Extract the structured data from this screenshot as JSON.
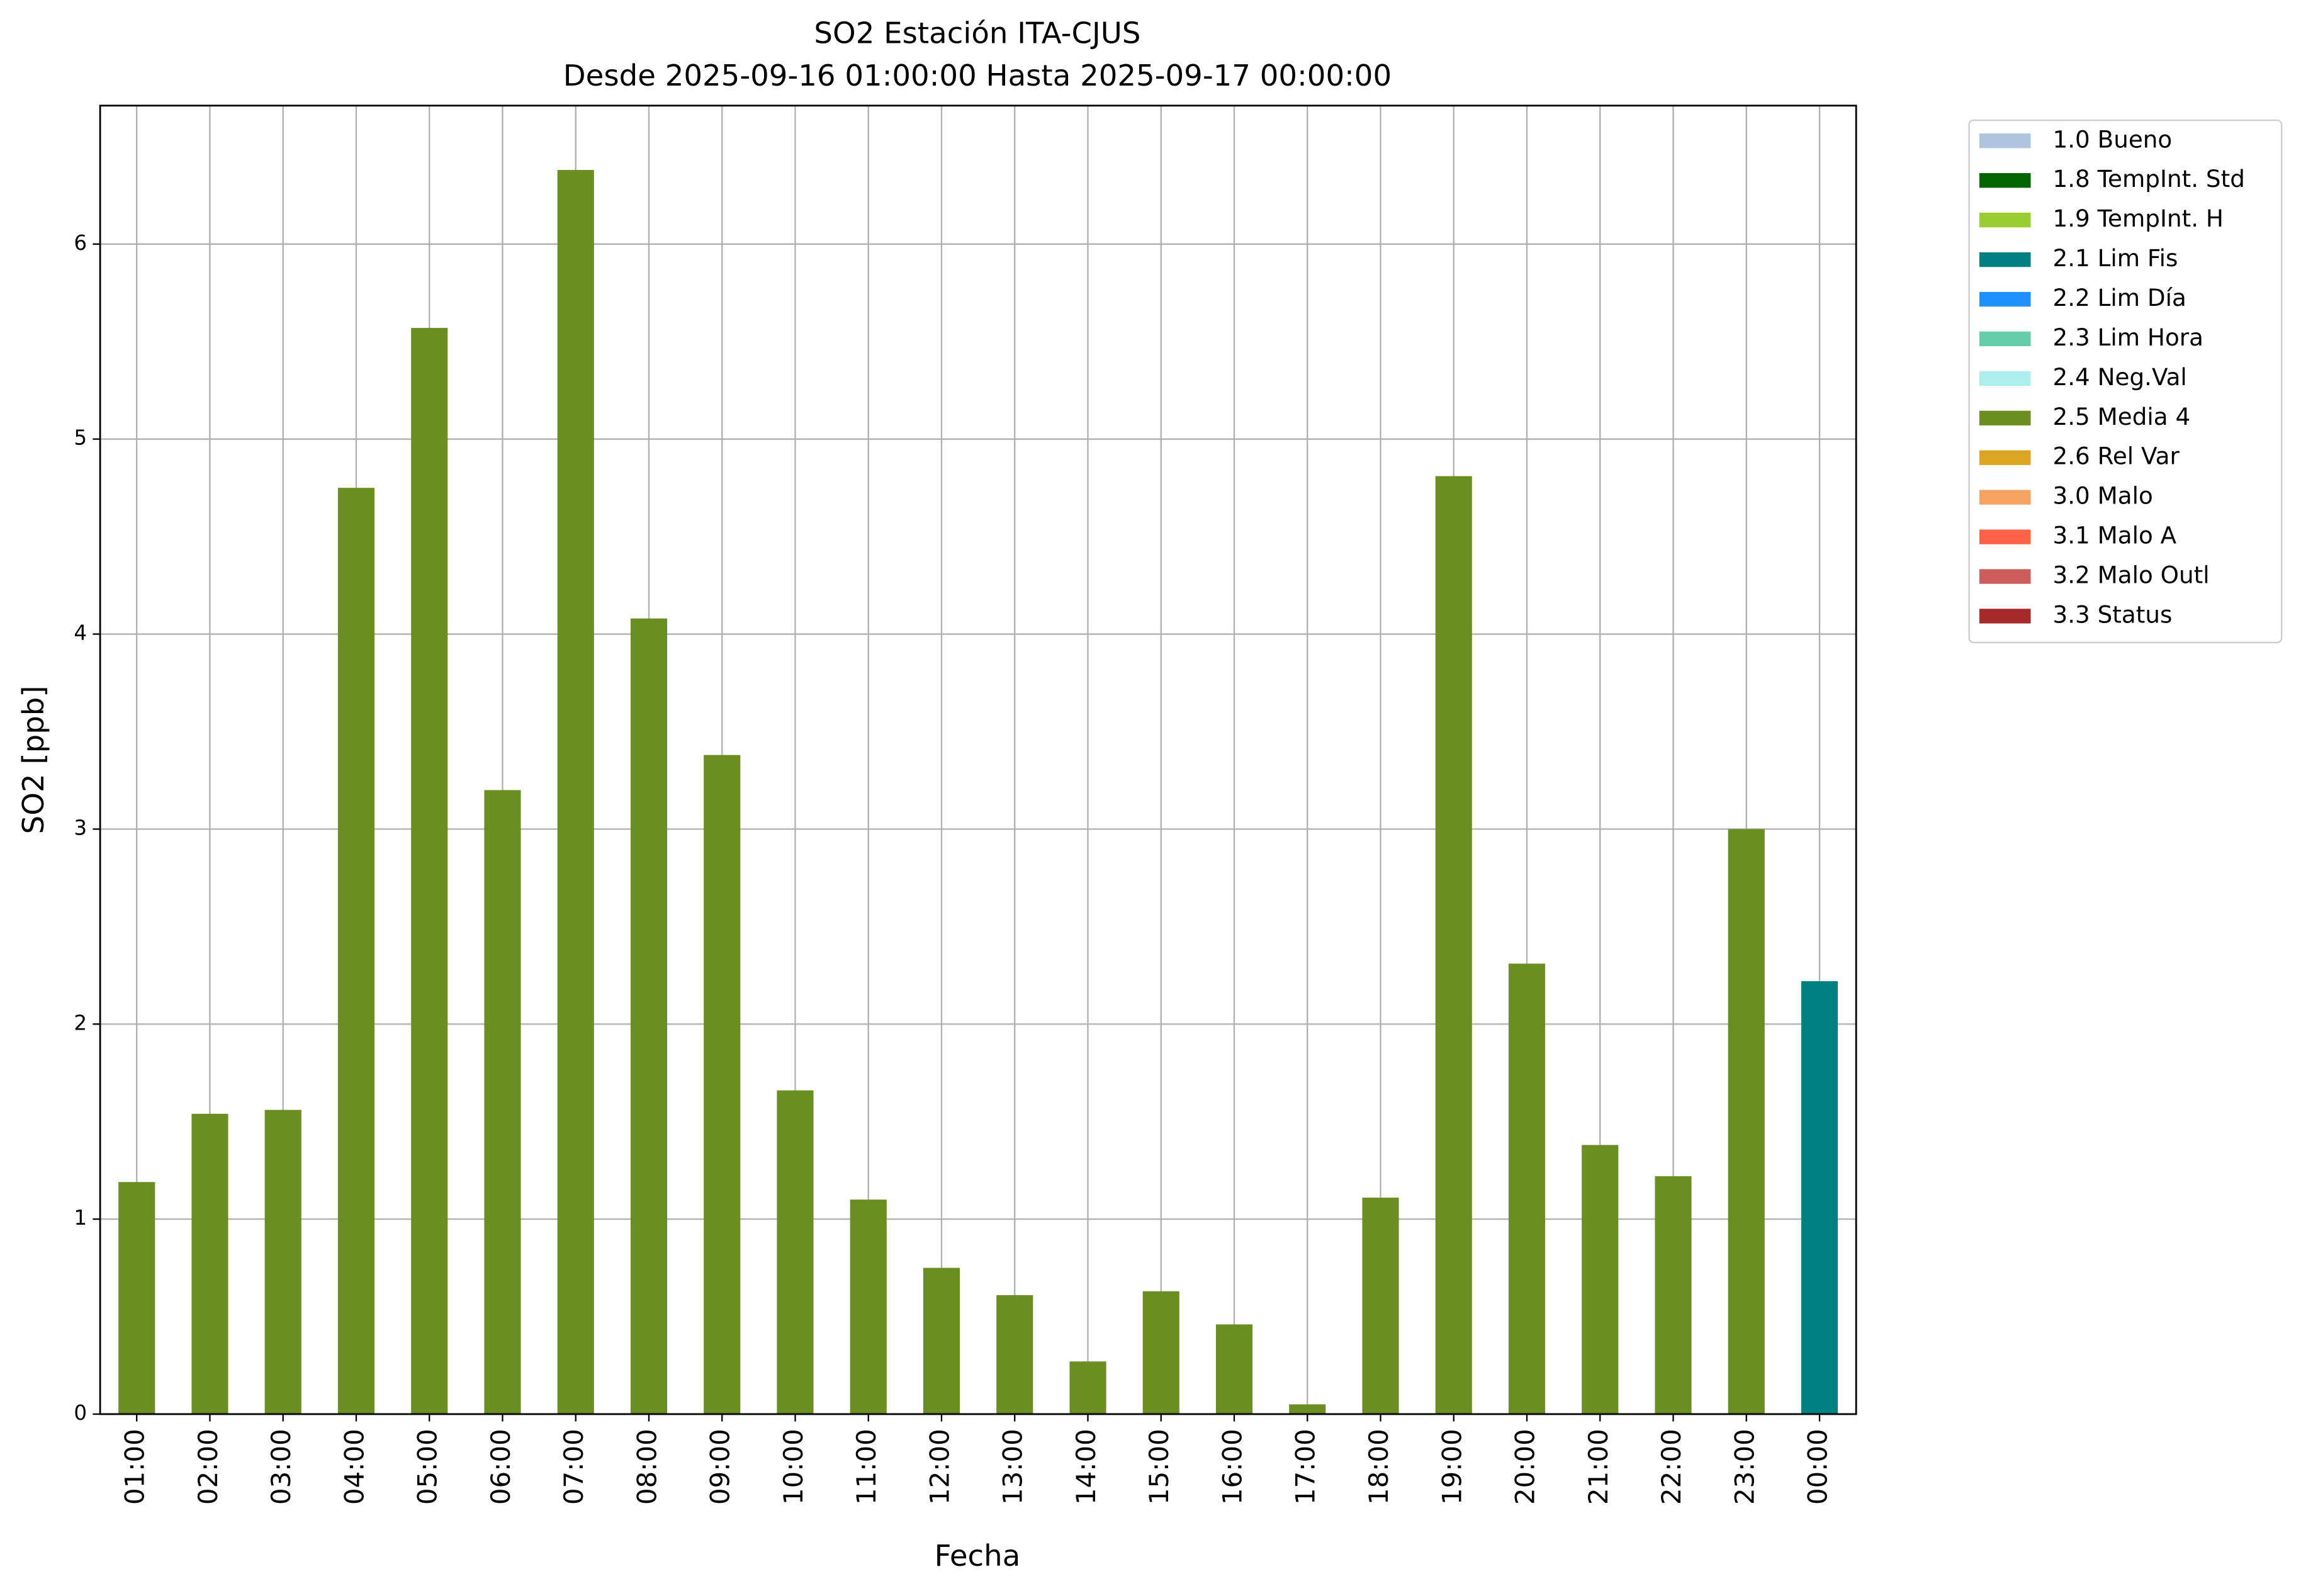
{
  "chart_data": {
    "type": "bar",
    "stacked": true,
    "title": "SO2 Estación ITA-CJUS",
    "subtitle": "Desde 2025-09-16 01:00:00 Hasta 2025-09-17 00:00:00",
    "xlabel": "Fecha",
    "ylabel": "SO2 [ppb]",
    "categories": [
      "01:00",
      "02:00",
      "03:00",
      "04:00",
      "05:00",
      "06:00",
      "07:00",
      "08:00",
      "09:00",
      "10:00",
      "11:00",
      "12:00",
      "13:00",
      "14:00",
      "15:00",
      "16:00",
      "17:00",
      "18:00",
      "19:00",
      "20:00",
      "21:00",
      "22:00",
      "23:00",
      "00:00"
    ],
    "ylim": [
      0,
      6.71
    ],
    "yticks": [
      0,
      1,
      2,
      3,
      4,
      5,
      6
    ],
    "grid": true,
    "legend": "outside-upper-right",
    "series": [
      {
        "name": "1.0 Bueno",
        "color": "#b0c4de",
        "values": [
          null,
          null,
          null,
          null,
          null,
          null,
          null,
          null,
          null,
          null,
          null,
          null,
          null,
          null,
          null,
          null,
          null,
          null,
          null,
          null,
          null,
          null,
          null,
          null
        ]
      },
      {
        "name": "1.8 TempInt. Std",
        "color": "#006400",
        "values": [
          null,
          null,
          null,
          null,
          null,
          null,
          null,
          null,
          null,
          null,
          null,
          null,
          null,
          null,
          null,
          null,
          null,
          null,
          null,
          null,
          null,
          null,
          null,
          null
        ]
      },
      {
        "name": "1.9 TempInt. H",
        "color": "#9acd32",
        "values": [
          null,
          null,
          null,
          null,
          null,
          null,
          null,
          null,
          null,
          null,
          null,
          null,
          null,
          null,
          null,
          null,
          null,
          null,
          null,
          null,
          null,
          null,
          null,
          null
        ]
      },
      {
        "name": "2.1 Lim Fis",
        "color": "#008080",
        "values": [
          null,
          null,
          null,
          null,
          null,
          null,
          null,
          null,
          null,
          null,
          null,
          null,
          null,
          null,
          null,
          null,
          null,
          null,
          null,
          null,
          null,
          null,
          null,
          2.22
        ]
      },
      {
        "name": "2.2 Lim Día",
        "color": "#1e90ff",
        "values": [
          null,
          null,
          null,
          null,
          null,
          null,
          null,
          null,
          null,
          null,
          null,
          null,
          null,
          null,
          null,
          null,
          null,
          null,
          null,
          null,
          null,
          null,
          null,
          null
        ]
      },
      {
        "name": "2.3 Lim Hora",
        "color": "#66cdaa",
        "values": [
          null,
          null,
          null,
          null,
          null,
          null,
          null,
          null,
          null,
          null,
          null,
          null,
          null,
          null,
          null,
          null,
          null,
          null,
          null,
          null,
          null,
          null,
          null,
          null
        ]
      },
      {
        "name": "2.4 Neg.Val",
        "color": "#afeeee",
        "values": [
          null,
          null,
          null,
          null,
          null,
          null,
          null,
          null,
          null,
          null,
          null,
          null,
          null,
          null,
          null,
          null,
          null,
          null,
          null,
          null,
          null,
          null,
          null,
          null
        ]
      },
      {
        "name": "2.5 Media 4",
        "color": "#6b8e23",
        "values": [
          1.19,
          1.54,
          1.56,
          4.75,
          5.57,
          3.2,
          6.38,
          4.08,
          3.38,
          1.66,
          1.1,
          0.75,
          0.61,
          0.27,
          0.63,
          0.46,
          0.05,
          1.11,
          4.81,
          2.31,
          1.38,
          1.22,
          3.0,
          null
        ]
      },
      {
        "name": "2.6 Rel Var",
        "color": "#daa520",
        "values": [
          null,
          null,
          null,
          null,
          null,
          null,
          null,
          null,
          null,
          null,
          null,
          null,
          null,
          null,
          null,
          null,
          null,
          null,
          null,
          null,
          null,
          null,
          null,
          null
        ]
      },
      {
        "name": "3.0 Malo",
        "color": "#f4a460",
        "values": [
          null,
          null,
          null,
          null,
          null,
          null,
          null,
          null,
          null,
          null,
          null,
          null,
          null,
          null,
          null,
          null,
          null,
          null,
          null,
          null,
          null,
          null,
          null,
          null
        ]
      },
      {
        "name": "3.1 Malo A",
        "color": "#ff6347",
        "values": [
          null,
          null,
          null,
          null,
          null,
          null,
          null,
          null,
          null,
          null,
          null,
          null,
          null,
          null,
          null,
          null,
          null,
          null,
          null,
          null,
          null,
          null,
          null,
          null
        ]
      },
      {
        "name": "3.2 Malo Outl",
        "color": "#cd5c5c",
        "values": [
          null,
          null,
          null,
          null,
          null,
          null,
          null,
          null,
          null,
          null,
          null,
          null,
          null,
          null,
          null,
          null,
          null,
          null,
          null,
          null,
          null,
          null,
          null,
          null
        ]
      },
      {
        "name": "3.3 Status",
        "color": "#a52a2a",
        "values": [
          null,
          null,
          null,
          null,
          null,
          null,
          null,
          null,
          null,
          null,
          null,
          null,
          null,
          null,
          null,
          null,
          null,
          null,
          null,
          null,
          null,
          null,
          null,
          null
        ]
      }
    ]
  }
}
